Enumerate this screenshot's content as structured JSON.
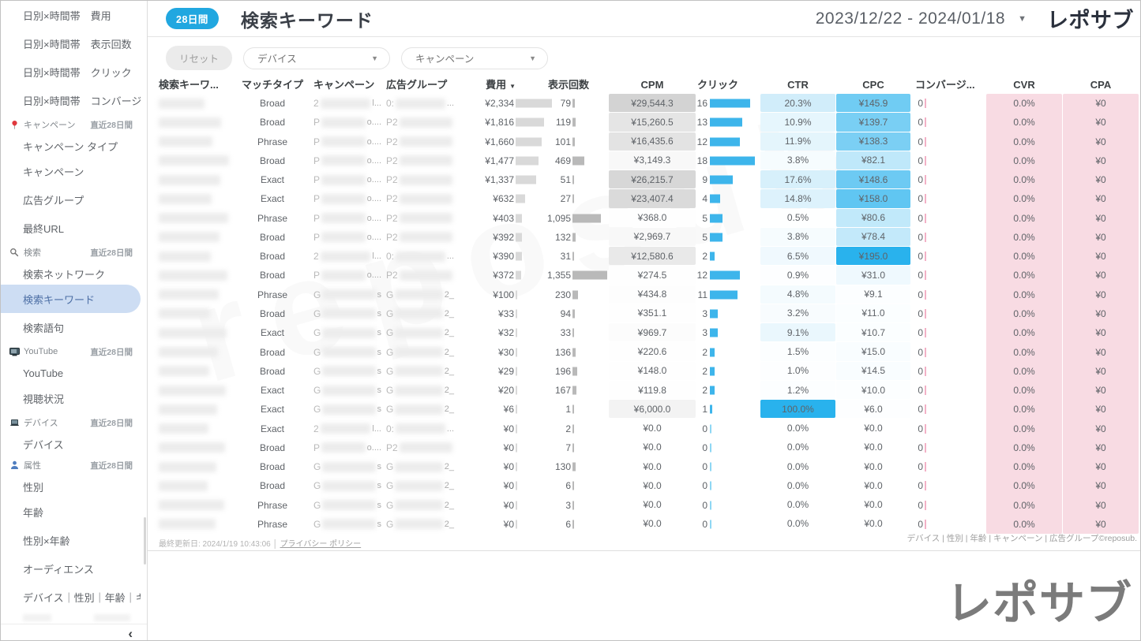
{
  "app": {
    "logo": "レポサブ",
    "watermark": "reposub"
  },
  "header": {
    "badge": "28日間",
    "title": "検索キーワード",
    "date_range": "2023/12/22 - 2024/01/18",
    "date_caret_icon": "chevron-down"
  },
  "filters": {
    "reset_label": "リセット",
    "device_label": "デバイス",
    "campaign_label": "キャンペーン"
  },
  "sidebar": {
    "collapse_icon": "‹",
    "section_badge": "直近28日間",
    "items": [
      {
        "label": "日別×時間帯　費用"
      },
      {
        "label": "日別×時間帯　表示回数"
      },
      {
        "label": "日別×時間帯　クリック"
      },
      {
        "label": "日別×時間帯　コンバージョ..."
      },
      {
        "type": "header",
        "icon": "pin",
        "label": "キャンペーン",
        "badge": "直近28日間"
      },
      {
        "label": "キャンペーン タイプ"
      },
      {
        "label": "キャンペーン"
      },
      {
        "label": "広告グループ"
      },
      {
        "label": "最終URL"
      },
      {
        "type": "header",
        "icon": "search",
        "label": "検索",
        "badge": "直近28日間"
      },
      {
        "label": "検索ネットワーク"
      },
      {
        "label": "検索キーワード",
        "selected": true
      },
      {
        "label": "検索語句"
      },
      {
        "type": "header",
        "icon": "tv",
        "label": "YouTube",
        "badge": "直近28日間"
      },
      {
        "label": "YouTube"
      },
      {
        "label": "視聴状況"
      },
      {
        "type": "header",
        "icon": "laptop",
        "label": "デバイス",
        "badge": "直近28日間"
      },
      {
        "label": "デバイス"
      },
      {
        "type": "header",
        "icon": "person",
        "label": "属性",
        "badge": "直近28日間"
      },
      {
        "label": "性別"
      },
      {
        "label": "年齢"
      },
      {
        "label": "性別×年齢"
      },
      {
        "label": "オーディエンス"
      },
      {
        "label": "デバイス｜性別｜年齢｜キ..."
      }
    ]
  },
  "table": {
    "columns": [
      "検索キーワ...",
      "マッチタイプ",
      "キャンペーン",
      "広告グループ",
      "費用",
      "表示回数",
      "CPM",
      "クリック",
      "CTR",
      "CPC",
      "コンバージ...",
      "CVR",
      "CPA"
    ],
    "sorted_column": "費用",
    "keyword_column_redacted": true,
    "redaction_groups": {
      "A": {
        "campaign_prefix": "2",
        "campaign_suffix": "l...",
        "adgroup_prefix": "0:",
        "adgroup_suffix": "..."
      },
      "B": {
        "campaign_prefix": "P",
        "campaign_suffix": "o....",
        "adgroup_prefix": "P2",
        "adgroup_suffix": ""
      },
      "C": {
        "campaign_prefix": "G",
        "campaign_suffix": "s",
        "adgroup_prefix": "G",
        "adgroup_suffix": "2_"
      }
    },
    "rows": [
      {
        "m": "Broad",
        "g": "A",
        "cost": "¥2,334",
        "cost_n": 2334,
        "imp": "79",
        "imp_n": 79,
        "cpm": "¥29,544.3",
        "cpm_n": 29544.3,
        "clk": 16,
        "ctr": "20.3%",
        "ctr_n": 20.3,
        "cpc": "¥145.9",
        "cpc_n": 145.9,
        "conv": "0",
        "cvr": "0.0%",
        "cpa": "¥0"
      },
      {
        "m": "Broad",
        "g": "B",
        "cost": "¥1,816",
        "cost_n": 1816,
        "imp": "119",
        "imp_n": 119,
        "cpm": "¥15,260.5",
        "cpm_n": 15260.5,
        "clk": 13,
        "ctr": "10.9%",
        "ctr_n": 10.9,
        "cpc": "¥139.7",
        "cpc_n": 139.7,
        "conv": "0",
        "cvr": "0.0%",
        "cpa": "¥0"
      },
      {
        "m": "Phrase",
        "g": "B",
        "cost": "¥1,660",
        "cost_n": 1660,
        "imp": "101",
        "imp_n": 101,
        "cpm": "¥16,435.6",
        "cpm_n": 16435.6,
        "clk": 12,
        "ctr": "11.9%",
        "ctr_n": 11.9,
        "cpc": "¥138.3",
        "cpc_n": 138.3,
        "conv": "0",
        "cvr": "0.0%",
        "cpa": "¥0"
      },
      {
        "m": "Broad",
        "g": "B",
        "cost": "¥1,477",
        "cost_n": 1477,
        "imp": "469",
        "imp_n": 469,
        "cpm": "¥3,149.3",
        "cpm_n": 3149.3,
        "clk": 18,
        "ctr": "3.8%",
        "ctr_n": 3.8,
        "cpc": "¥82.1",
        "cpc_n": 82.1,
        "conv": "0",
        "cvr": "0.0%",
        "cpa": "¥0"
      },
      {
        "m": "Exact",
        "g": "B",
        "cost": "¥1,337",
        "cost_n": 1337,
        "imp": "51",
        "imp_n": 51,
        "cpm": "¥26,215.7",
        "cpm_n": 26215.7,
        "clk": 9,
        "ctr": "17.6%",
        "ctr_n": 17.6,
        "cpc": "¥148.6",
        "cpc_n": 148.6,
        "conv": "0",
        "cvr": "0.0%",
        "cpa": "¥0"
      },
      {
        "m": "Exact",
        "g": "B",
        "cost": "¥632",
        "cost_n": 632,
        "imp": "27",
        "imp_n": 27,
        "cpm": "¥23,407.4",
        "cpm_n": 23407.4,
        "clk": 4,
        "ctr": "14.8%",
        "ctr_n": 14.8,
        "cpc": "¥158.0",
        "cpc_n": 158.0,
        "conv": "0",
        "cvr": "0.0%",
        "cpa": "¥0"
      },
      {
        "m": "Phrase",
        "g": "B",
        "cost": "¥403",
        "cost_n": 403,
        "imp": "1,095",
        "imp_n": 1095,
        "cpm": "¥368.0",
        "cpm_n": 368.0,
        "clk": 5,
        "ctr": "0.5%",
        "ctr_n": 0.5,
        "cpc": "¥80.6",
        "cpc_n": 80.6,
        "conv": "0",
        "cvr": "0.0%",
        "cpa": "¥0"
      },
      {
        "m": "Broad",
        "g": "B",
        "cost": "¥392",
        "cost_n": 392,
        "imp": "132",
        "imp_n": 132,
        "cpm": "¥2,969.7",
        "cpm_n": 2969.7,
        "clk": 5,
        "ctr": "3.8%",
        "ctr_n": 3.8,
        "cpc": "¥78.4",
        "cpc_n": 78.4,
        "conv": "0",
        "cvr": "0.0%",
        "cpa": "¥0"
      },
      {
        "m": "Broad",
        "g": "A",
        "cost": "¥390",
        "cost_n": 390,
        "imp": "31",
        "imp_n": 31,
        "cpm": "¥12,580.6",
        "cpm_n": 12580.6,
        "clk": 2,
        "ctr": "6.5%",
        "ctr_n": 6.5,
        "cpc": "¥195.0",
        "cpc_n": 195.0,
        "conv": "0",
        "cvr": "0.0%",
        "cpa": "¥0"
      },
      {
        "m": "Broad",
        "g": "B",
        "cost": "¥372",
        "cost_n": 372,
        "imp": "1,355",
        "imp_n": 1355,
        "cpm": "¥274.5",
        "cpm_n": 274.5,
        "clk": 12,
        "ctr": "0.9%",
        "ctr_n": 0.9,
        "cpc": "¥31.0",
        "cpc_n": 31.0,
        "conv": "0",
        "cvr": "0.0%",
        "cpa": "¥0"
      },
      {
        "m": "Phrase",
        "g": "C",
        "cost": "¥100",
        "cost_n": 100,
        "imp": "230",
        "imp_n": 230,
        "cpm": "¥434.8",
        "cpm_n": 434.8,
        "clk": 11,
        "ctr": "4.8%",
        "ctr_n": 4.8,
        "cpc": "¥9.1",
        "cpc_n": 9.1,
        "conv": "0",
        "cvr": "0.0%",
        "cpa": "¥0"
      },
      {
        "m": "Broad",
        "g": "C",
        "cost": "¥33",
        "cost_n": 33,
        "imp": "94",
        "imp_n": 94,
        "cpm": "¥351.1",
        "cpm_n": 351.1,
        "clk": 3,
        "ctr": "3.2%",
        "ctr_n": 3.2,
        "cpc": "¥11.0",
        "cpc_n": 11.0,
        "conv": "0",
        "cvr": "0.0%",
        "cpa": "¥0"
      },
      {
        "m": "Exact",
        "g": "C",
        "cost": "¥32",
        "cost_n": 32,
        "imp": "33",
        "imp_n": 33,
        "cpm": "¥969.7",
        "cpm_n": 969.7,
        "clk": 3,
        "ctr": "9.1%",
        "ctr_n": 9.1,
        "cpc": "¥10.7",
        "cpc_n": 10.7,
        "conv": "0",
        "cvr": "0.0%",
        "cpa": "¥0"
      },
      {
        "m": "Broad",
        "g": "C",
        "cost": "¥30",
        "cost_n": 30,
        "imp": "136",
        "imp_n": 136,
        "cpm": "¥220.6",
        "cpm_n": 220.6,
        "clk": 2,
        "ctr": "1.5%",
        "ctr_n": 1.5,
        "cpc": "¥15.0",
        "cpc_n": 15.0,
        "conv": "0",
        "cvr": "0.0%",
        "cpa": "¥0"
      },
      {
        "m": "Broad",
        "g": "C",
        "cost": "¥29",
        "cost_n": 29,
        "imp": "196",
        "imp_n": 196,
        "cpm": "¥148.0",
        "cpm_n": 148.0,
        "clk": 2,
        "ctr": "1.0%",
        "ctr_n": 1.0,
        "cpc": "¥14.5",
        "cpc_n": 14.5,
        "conv": "0",
        "cvr": "0.0%",
        "cpa": "¥0"
      },
      {
        "m": "Exact",
        "g": "C",
        "cost": "¥20",
        "cost_n": 20,
        "imp": "167",
        "imp_n": 167,
        "cpm": "¥119.8",
        "cpm_n": 119.8,
        "clk": 2,
        "ctr": "1.2%",
        "ctr_n": 1.2,
        "cpc": "¥10.0",
        "cpc_n": 10.0,
        "conv": "0",
        "cvr": "0.0%",
        "cpa": "¥0"
      },
      {
        "m": "Exact",
        "g": "C",
        "cost": "¥6",
        "cost_n": 6,
        "imp": "1",
        "imp_n": 1,
        "cpm": "¥6,000.0",
        "cpm_n": 6000.0,
        "clk": 1,
        "ctr": "100.0%",
        "ctr_n": 100.0,
        "cpc": "¥6.0",
        "cpc_n": 6.0,
        "conv": "0",
        "cvr": "0.0%",
        "cpa": "¥0"
      },
      {
        "m": "Exact",
        "g": "A",
        "cost": "¥0",
        "cost_n": 0,
        "imp": "2",
        "imp_n": 2,
        "cpm": "¥0.0",
        "cpm_n": 0,
        "clk": 0,
        "ctr": "0.0%",
        "ctr_n": 0,
        "cpc": "¥0.0",
        "cpc_n": 0,
        "conv": "0",
        "cvr": "0.0%",
        "cpa": "¥0"
      },
      {
        "m": "Broad",
        "g": "B",
        "cost": "¥0",
        "cost_n": 0,
        "imp": "7",
        "imp_n": 7,
        "cpm": "¥0.0",
        "cpm_n": 0,
        "clk": 0,
        "ctr": "0.0%",
        "ctr_n": 0,
        "cpc": "¥0.0",
        "cpc_n": 0,
        "conv": "0",
        "cvr": "0.0%",
        "cpa": "¥0"
      },
      {
        "m": "Broad",
        "g": "C",
        "cost": "¥0",
        "cost_n": 0,
        "imp": "130",
        "imp_n": 130,
        "cpm": "¥0.0",
        "cpm_n": 0,
        "clk": 0,
        "ctr": "0.0%",
        "ctr_n": 0,
        "cpc": "¥0.0",
        "cpc_n": 0,
        "conv": "0",
        "cvr": "0.0%",
        "cpa": "¥0"
      },
      {
        "m": "Broad",
        "g": "C",
        "cost": "¥0",
        "cost_n": 0,
        "imp": "6",
        "imp_n": 6,
        "cpm": "¥0.0",
        "cpm_n": 0,
        "clk": 0,
        "ctr": "0.0%",
        "ctr_n": 0,
        "cpc": "¥0.0",
        "cpc_n": 0,
        "conv": "0",
        "cvr": "0.0%",
        "cpa": "¥0"
      },
      {
        "m": "Phrase",
        "g": "C",
        "cost": "¥0",
        "cost_n": 0,
        "imp": "3",
        "imp_n": 3,
        "cpm": "¥0.0",
        "cpm_n": 0,
        "clk": 0,
        "ctr": "0.0%",
        "ctr_n": 0,
        "cpc": "¥0.0",
        "cpc_n": 0,
        "conv": "0",
        "cvr": "0.0%",
        "cpa": "¥0"
      },
      {
        "m": "Phrase",
        "g": "C",
        "cost": "¥0",
        "cost_n": 0,
        "imp": "6",
        "imp_n": 6,
        "cpm": "¥0.0",
        "cpm_n": 0,
        "clk": 0,
        "ctr": "0.0%",
        "ctr_n": 0,
        "cpc": "¥0.0",
        "cpc_n": 0,
        "conv": "0",
        "cvr": "0.0%",
        "cpa": "¥0"
      }
    ]
  },
  "footer": {
    "last_updated": "最終更新日: 2024/1/19 10:43:06",
    "privacy_link": "プライバシー ポリシー",
    "credits": "デバイス | 性別 | 年齢 | キャンペーン | 広告グループ©reposub."
  },
  "colors": {
    "accent_blue": "#21a7e0",
    "heat_blue_max": "#29b2ed",
    "pink_band": "#f8dbe3",
    "cost_bar_gray": "#d9d9d9",
    "impression_bar_gray": "#b9b9b9",
    "click_bar_blue": "#3db5eb",
    "conversion_tick_pink": "#f2b1c6"
  }
}
